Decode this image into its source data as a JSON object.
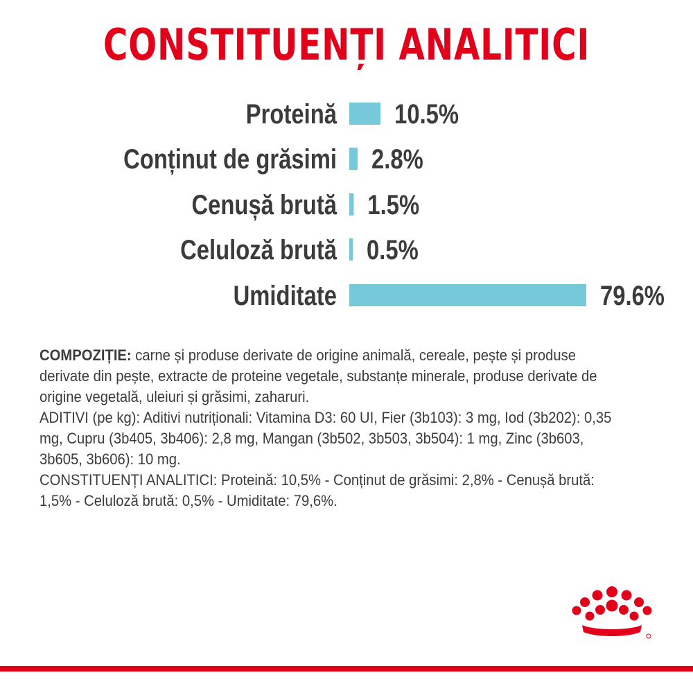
{
  "title": "CONSTITUENȚI ANALITICI",
  "chart_data": {
    "type": "bar",
    "orientation": "horizontal",
    "title": "CONSTITUENȚI ANALITICI",
    "categories": [
      "Proteină",
      "Conținut de grăsimi",
      "Cenușă brută",
      "Celuloză brută",
      "Umiditate"
    ],
    "values": [
      10.5,
      2.8,
      1.5,
      0.5,
      79.6
    ],
    "value_labels": [
      "10.5%",
      "2.8%",
      "1.5%",
      "0.5%",
      "79.6%"
    ],
    "unit": "%",
    "bar_color": "#75c9d9",
    "grid": false,
    "legend": "none"
  },
  "composition": {
    "label": "COMPOZIȚIE:",
    "text": " carne și produse derivate de origine animală, cereale, pește și produse derivate din pește, extracte de proteine vegetale, substanțe minerale, produse derivate de origine vegetală, uleiuri și grăsimi, zaharuri.",
    "additives": "ADITIVI (pe kg): Aditivi nutriționali: Vitamina D3: 60 UI, Fier (3b103): 3  mg, Iod (3b202): 0,35  mg, Cupru (3b405, 3b406): 2,8  mg, Mangan (3b502, 3b503, 3b504): 1  mg, Zinc (3b603, 3b605, 3b606): 10  mg.",
    "constituents": "CONSTITUENȚI ANALITICI: Proteină: 10,5% - Conținut de grăsimi: 2,8% - Cenușă brută: 1,5% - Celuloză brută: 0,5% - Umiditate: 79,6%."
  },
  "logo": {
    "icon": "royal-canin-crown-icon"
  },
  "colors": {
    "brand_red": "#e2001a",
    "bar": "#75c9d9",
    "text": "#3b3b3b"
  }
}
